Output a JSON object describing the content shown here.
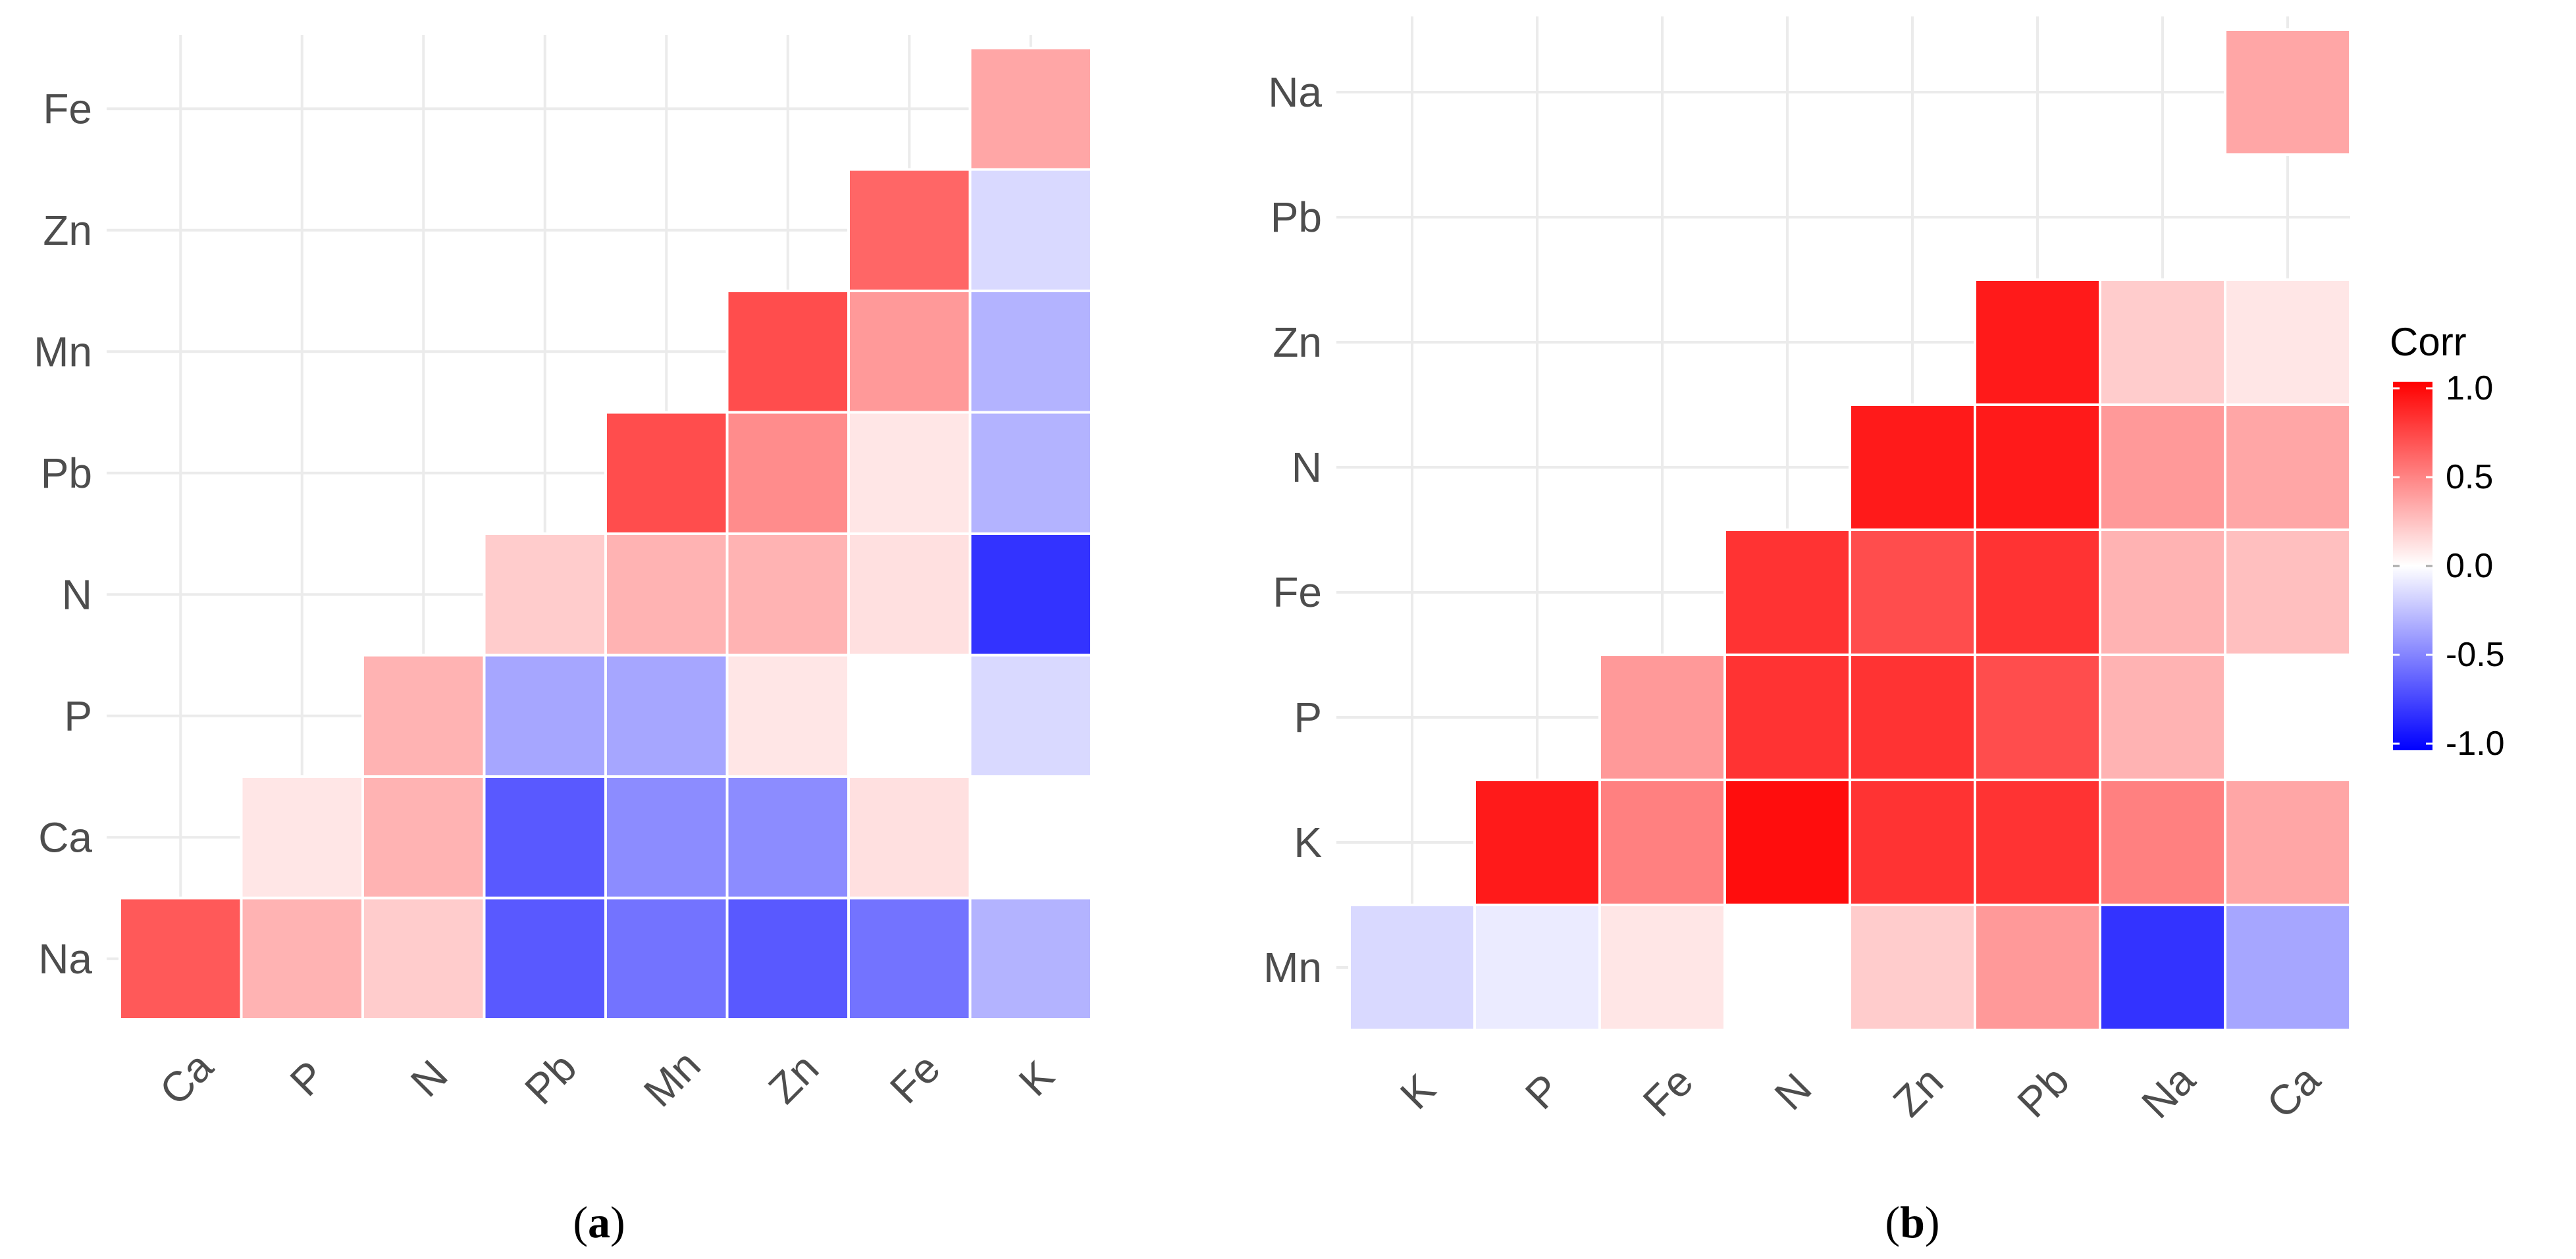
{
  "chart_data": [
    {
      "type": "heatmap",
      "panel_label": "a",
      "title": "",
      "x_categories": [
        "Ca",
        "P",
        "N",
        "Pb",
        "Mn",
        "Zn",
        "Fe",
        "K"
      ],
      "y_categories": [
        "Na",
        "Ca",
        "P",
        "N",
        "Pb",
        "Mn",
        "Zn",
        "Fe"
      ],
      "cells": [
        {
          "x": "K",
          "y": "Fe",
          "value": 0.35
        },
        {
          "x": "Fe",
          "y": "Zn",
          "value": 0.6
        },
        {
          "x": "K",
          "y": "Zn",
          "value": -0.15
        },
        {
          "x": "Zn",
          "y": "Mn",
          "value": 0.7
        },
        {
          "x": "Fe",
          "y": "Mn",
          "value": 0.4
        },
        {
          "x": "K",
          "y": "Mn",
          "value": -0.3
        },
        {
          "x": "Mn",
          "y": "Pb",
          "value": 0.7
        },
        {
          "x": "Zn",
          "y": "Pb",
          "value": 0.45
        },
        {
          "x": "Fe",
          "y": "Pb",
          "value": 0.1
        },
        {
          "x": "K",
          "y": "Pb",
          "value": -0.3
        },
        {
          "x": "Pb",
          "y": "N",
          "value": 0.2
        },
        {
          "x": "Mn",
          "y": "N",
          "value": 0.3
        },
        {
          "x": "Zn",
          "y": "N",
          "value": 0.3
        },
        {
          "x": "Fe",
          "y": "N",
          "value": 0.12
        },
        {
          "x": "K",
          "y": "N",
          "value": -0.8
        },
        {
          "x": "N",
          "y": "P",
          "value": 0.3
        },
        {
          "x": "Pb",
          "y": "P",
          "value": -0.35
        },
        {
          "x": "Mn",
          "y": "P",
          "value": -0.35
        },
        {
          "x": "Zn",
          "y": "P",
          "value": 0.1
        },
        {
          "x": "Fe",
          "y": "P",
          "value": 0.0
        },
        {
          "x": "K",
          "y": "P",
          "value": -0.15
        },
        {
          "x": "P",
          "y": "Ca",
          "value": 0.1
        },
        {
          "x": "N",
          "y": "Ca",
          "value": 0.3
        },
        {
          "x": "Pb",
          "y": "Ca",
          "value": -0.65
        },
        {
          "x": "Mn",
          "y": "Ca",
          "value": -0.45
        },
        {
          "x": "Zn",
          "y": "Ca",
          "value": -0.45
        },
        {
          "x": "Fe",
          "y": "Ca",
          "value": 0.12
        },
        {
          "x": "K",
          "y": "Ca",
          "value": 0.0
        },
        {
          "x": "Ca",
          "y": "Na",
          "value": 0.65
        },
        {
          "x": "P",
          "y": "Na",
          "value": 0.3
        },
        {
          "x": "N",
          "y": "Na",
          "value": 0.2
        },
        {
          "x": "Pb",
          "y": "Na",
          "value": -0.65
        },
        {
          "x": "Mn",
          "y": "Na",
          "value": -0.55
        },
        {
          "x": "Zn",
          "y": "Na",
          "value": -0.65
        },
        {
          "x": "Fe",
          "y": "Na",
          "value": -0.55
        },
        {
          "x": "K",
          "y": "Na",
          "value": -0.3
        }
      ]
    },
    {
      "type": "heatmap",
      "panel_label": "b",
      "title": "",
      "x_categories": [
        "K",
        "P",
        "Fe",
        "N",
        "Zn",
        "Pb",
        "Na",
        "Ca"
      ],
      "y_categories": [
        "Mn",
        "K",
        "P",
        "Fe",
        "N",
        "Zn",
        "Pb",
        "Na"
      ],
      "cells": [
        {
          "x": "Ca",
          "y": "Na",
          "value": 0.35
        },
        {
          "x": "Pb",
          "y": "Zn",
          "value": 0.9
        },
        {
          "x": "Na",
          "y": "Zn",
          "value": 0.2
        },
        {
          "x": "Ca",
          "y": "Zn",
          "value": 0.1
        },
        {
          "x": "Zn",
          "y": "N",
          "value": 0.9
        },
        {
          "x": "Pb",
          "y": "N",
          "value": 0.9
        },
        {
          "x": "Na",
          "y": "N",
          "value": 0.4
        },
        {
          "x": "Ca",
          "y": "N",
          "value": 0.35
        },
        {
          "x": "N",
          "y": "Fe",
          "value": 0.8
        },
        {
          "x": "Zn",
          "y": "Fe",
          "value": 0.7
        },
        {
          "x": "Pb",
          "y": "Fe",
          "value": 0.8
        },
        {
          "x": "Na",
          "y": "Fe",
          "value": 0.3
        },
        {
          "x": "Ca",
          "y": "Fe",
          "value": 0.25
        },
        {
          "x": "Fe",
          "y": "P",
          "value": 0.4
        },
        {
          "x": "N",
          "y": "P",
          "value": 0.8
        },
        {
          "x": "Zn",
          "y": "P",
          "value": 0.8
        },
        {
          "x": "Pb",
          "y": "P",
          "value": 0.7
        },
        {
          "x": "Na",
          "y": "P",
          "value": 0.3
        },
        {
          "x": "Ca",
          "y": "P",
          "value": 0.0
        },
        {
          "x": "P",
          "y": "K",
          "value": 0.9
        },
        {
          "x": "Fe",
          "y": "K",
          "value": 0.5
        },
        {
          "x": "N",
          "y": "K",
          "value": 0.95
        },
        {
          "x": "Zn",
          "y": "K",
          "value": 0.8
        },
        {
          "x": "Pb",
          "y": "K",
          "value": 0.8
        },
        {
          "x": "Na",
          "y": "K",
          "value": 0.5
        },
        {
          "x": "Ca",
          "y": "K",
          "value": 0.35
        },
        {
          "x": "K",
          "y": "Mn",
          "value": -0.15
        },
        {
          "x": "P",
          "y": "Mn",
          "value": -0.08
        },
        {
          "x": "Fe",
          "y": "Mn",
          "value": 0.1
        },
        {
          "x": "N",
          "y": "Mn",
          "value": 0.0
        },
        {
          "x": "Zn",
          "y": "Mn",
          "value": 0.2
        },
        {
          "x": "Pb",
          "y": "Mn",
          "value": 0.4
        },
        {
          "x": "Na",
          "y": "Mn",
          "value": -0.8
        },
        {
          "x": "Ca",
          "y": "Mn",
          "value": -0.35
        }
      ]
    }
  ],
  "legend": {
    "title": "Corr",
    "ticks": [
      "1.0",
      "0.5",
      "0.0",
      "-0.5",
      "-1.0"
    ],
    "range": [
      -1.0,
      1.0
    ],
    "colors": {
      "low": "#0000ff",
      "mid": "#ffffff",
      "high": "#ff0000"
    }
  },
  "captions": {
    "a": {
      "open": "(",
      "letter": "a",
      "close": ")"
    },
    "b": {
      "open": "(",
      "letter": "b",
      "close": ")"
    }
  }
}
